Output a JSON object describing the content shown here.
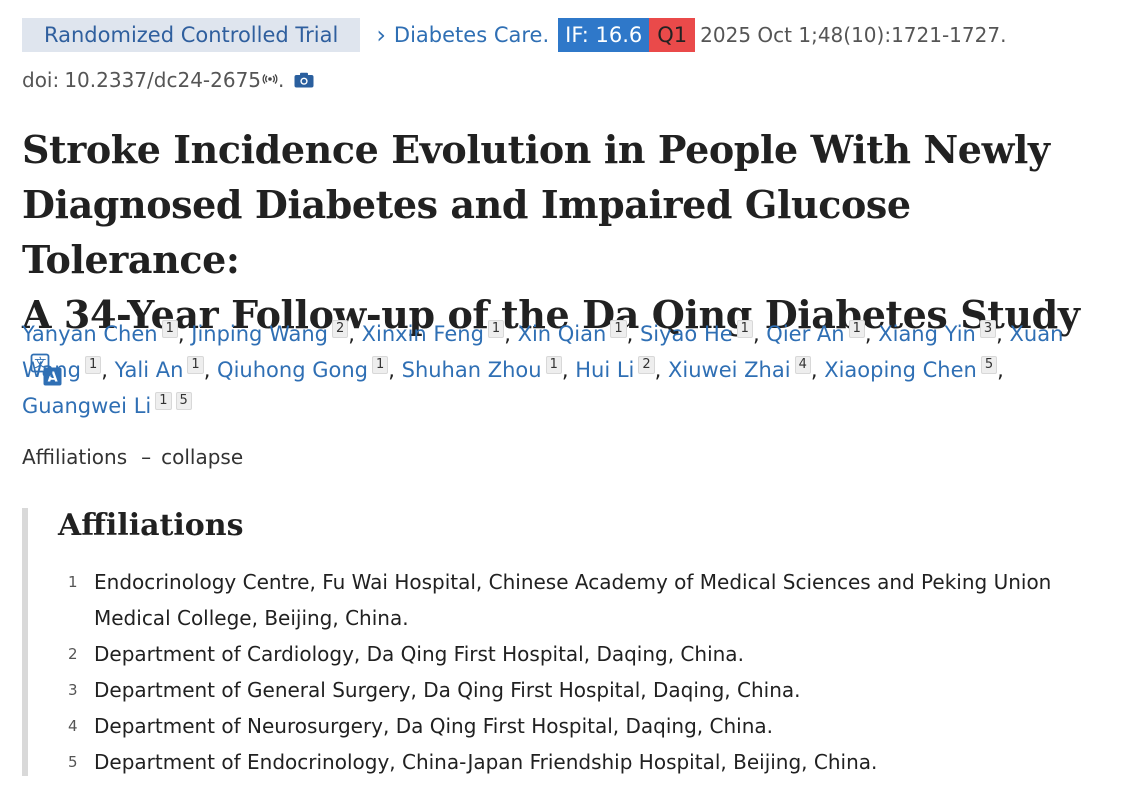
{
  "header": {
    "publication_type": "Randomized Controlled Trial",
    "journal": "Diabetes Care.",
    "impact_factor": "IF: 16.6",
    "quartile": "Q1",
    "citation": "2025 Oct 1;48(10):1721-1727.",
    "doi_label": "doi:",
    "doi": "10.2337/dc24-2675",
    "doi_end": ".",
    "icons": {
      "broadcast": "broadcast-icon",
      "camera": "camera-icon",
      "chevron": "chevron-right-icon",
      "translate": "translate-icon"
    },
    "colors": {
      "if_badge": "#2f78c9",
      "q_badge": "#ea4a4a",
      "pub_type_bg": "#dfe5ee",
      "link": "#2f6fb4"
    }
  },
  "article": {
    "title_line1": "Stroke Incidence Evolution in People With Newly",
    "title_line2": "Diagnosed Diabetes and Impaired Glucose Tolerance:",
    "title_line3": "A 34-Year Follow-up of the Da Qing Diabetes Study"
  },
  "authors": [
    {
      "name": "Yanyan Chen",
      "affs": [
        "1"
      ]
    },
    {
      "name": "Jinping Wang",
      "affs": [
        "2"
      ]
    },
    {
      "name": "Xinxin Feng",
      "affs": [
        "1"
      ]
    },
    {
      "name": "Xin Qian",
      "affs": [
        "1"
      ]
    },
    {
      "name": "Siyao He",
      "affs": [
        "1"
      ]
    },
    {
      "name": "Qier An",
      "affs": [
        "1"
      ]
    },
    {
      "name": "Xiang Yin",
      "affs": [
        "3"
      ]
    },
    {
      "name": "Xuan Wang",
      "affs": [
        "1"
      ]
    },
    {
      "name": "Yali An",
      "affs": [
        "1"
      ]
    },
    {
      "name": "Qiuhong Gong",
      "affs": [
        "1"
      ]
    },
    {
      "name": "Shuhan Zhou",
      "affs": [
        "1"
      ]
    },
    {
      "name": "Hui Li",
      "affs": [
        "2"
      ]
    },
    {
      "name": "Xiuwei Zhai",
      "affs": [
        "4"
      ]
    },
    {
      "name": "Xiaoping Chen",
      "affs": [
        "5"
      ]
    },
    {
      "name": "Guangwei Li",
      "affs": [
        "1",
        "5"
      ]
    }
  ],
  "affiliations_toggle": {
    "label": "Affiliations",
    "dash": "–",
    "action": "collapse"
  },
  "affiliations": {
    "heading": "Affiliations",
    "items": [
      {
        "num": "1",
        "text": "Endocrinology Centre, Fu Wai Hospital, Chinese Academy of Medical Sciences and Peking Union Medical College, Beijing, China."
      },
      {
        "num": "2",
        "text": "Department of Cardiology, Da Qing First Hospital, Daqing, China."
      },
      {
        "num": "3",
        "text": "Department of General Surgery, Da Qing First Hospital, Daqing, China."
      },
      {
        "num": "4",
        "text": "Department of Neurosurgery, Da Qing First Hospital, Daqing, China."
      },
      {
        "num": "5",
        "text": "Department of Endocrinology, China-Japan Friendship Hospital, Beijing, China."
      }
    ]
  }
}
